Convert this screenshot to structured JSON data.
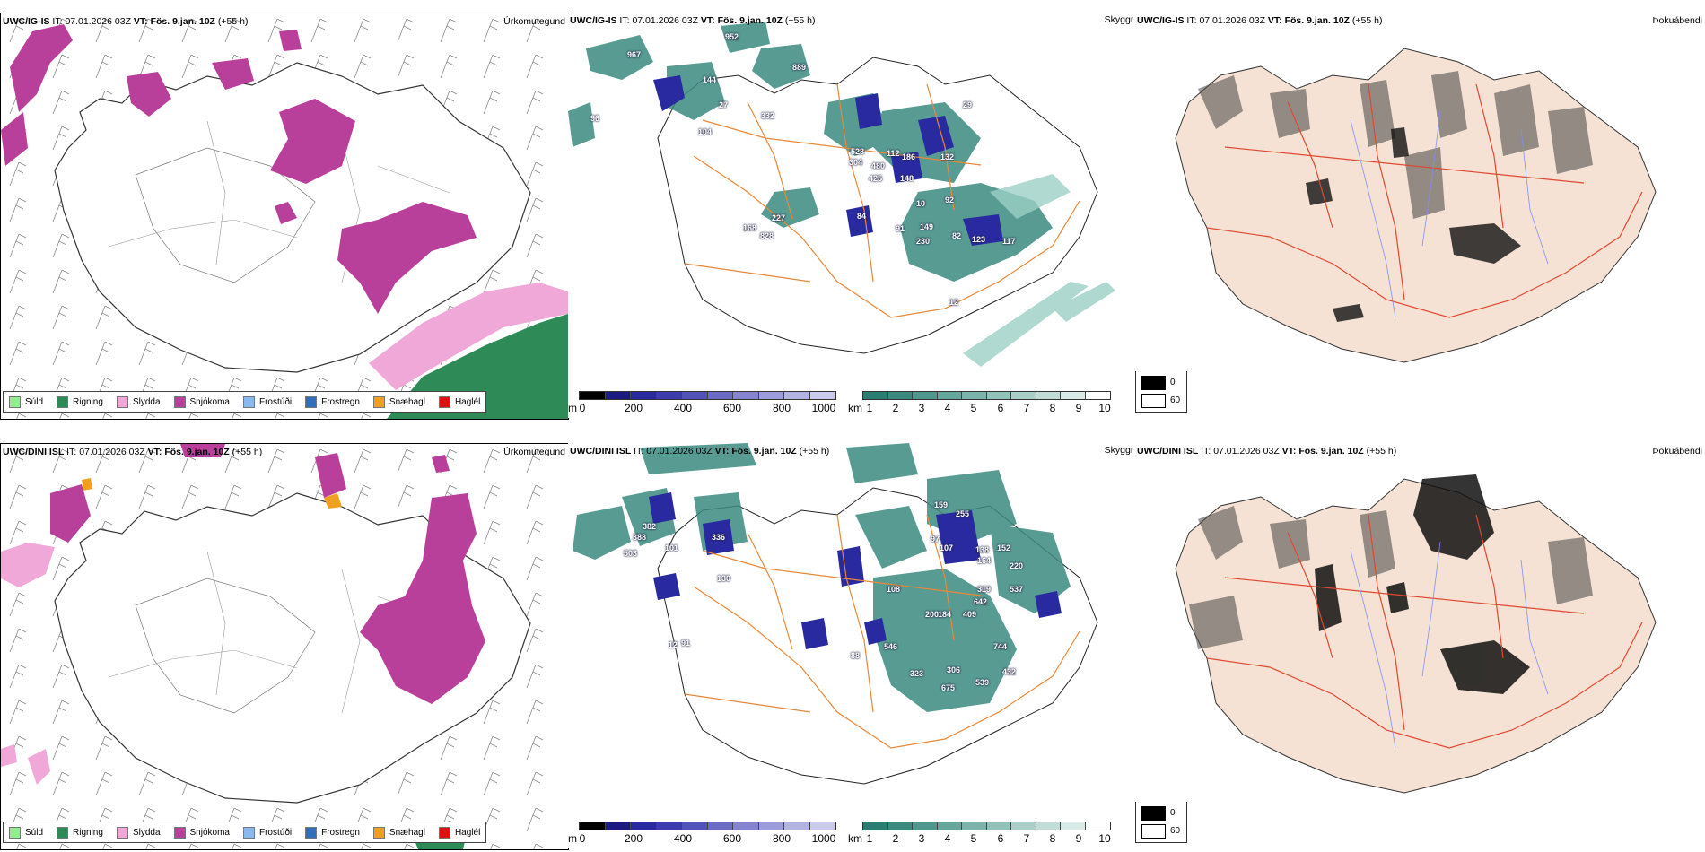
{
  "rows": [
    {
      "model": "UWC/IG-IS",
      "it_label": "IT:",
      "it_value": "07.01.2026 03Z",
      "vt_label": "VT:",
      "vt_value": "Fös. 9.jan. 10Z",
      "lead": "(+55 h)",
      "labels": [
        "967",
        "952",
        "889",
        "144",
        "27",
        "96",
        "104",
        "332",
        "29",
        "528",
        "304",
        "480",
        "186",
        "132",
        "425",
        "112",
        "148",
        "92",
        "10",
        "227",
        "168",
        "828",
        "84",
        "91",
        "149",
        "230",
        "82",
        "123",
        "117",
        "12"
      ]
    },
    {
      "model": "UWC/DINI ISL",
      "it_label": "IT:",
      "it_value": "07.01.2026 03Z",
      "vt_label": "VT:",
      "vt_value": "Fös. 9.jan. 10Z",
      "lead": "(+55 h)",
      "labels": [
        "382",
        "388",
        "503",
        "101",
        "336",
        "130",
        "91",
        "12",
        "159",
        "255",
        "97",
        "107",
        "138",
        "152",
        "164",
        "220",
        "319",
        "537",
        "642",
        "409",
        "184",
        "200",
        "744",
        "546",
        "323",
        "306",
        "432",
        "675",
        "539",
        "88",
        "108"
      ]
    }
  ],
  "panel_titles": {
    "precip_type": "Úrkomutegund",
    "cloud_base": "Skyggni",
    "fog": "Þokuábendi"
  },
  "precip_legend": [
    {
      "label": "Súld",
      "color": "#90ee90"
    },
    {
      "label": "Rigning",
      "color": "#2e8b57"
    },
    {
      "label": "Slydda",
      "color": "#f0a8d8"
    },
    {
      "label": "Snjókoma",
      "color": "#b8409a"
    },
    {
      "label": "Frostúði",
      "color": "#87b8f0"
    },
    {
      "label": "Frostregn",
      "color": "#2f6fc0"
    },
    {
      "label": "Snæhagl",
      "color": "#f0a020"
    },
    {
      "label": "Haglél",
      "color": "#e01010"
    }
  ],
  "cloud_scale": {
    "unit": "m",
    "ticks": [
      "0",
      "200",
      "400",
      "600",
      "800",
      "1000"
    ],
    "colors": [
      "#000000",
      "#1a1a80",
      "#2a2aa0",
      "#3c3cb0",
      "#5252bb",
      "#6b6bc4",
      "#8585cf",
      "#9c9cd8",
      "#b4b4e2",
      "#cacaec"
    ]
  },
  "vis_scale": {
    "unit": "km",
    "ticks": [
      "1",
      "2",
      "3",
      "4",
      "5",
      "6",
      "7",
      "8",
      "9",
      "10"
    ],
    "colors": [
      "#2a7d72",
      "#3a8a80",
      "#4f978e",
      "#65a59c",
      "#7cb3ab",
      "#93c2ba",
      "#aad0c9",
      "#c1ddd8",
      "#d8ebe7",
      "#ffffff"
    ]
  },
  "fog_legend": {
    "high": "0",
    "low": "60",
    "high_color": "#000000",
    "low_color": "#ffffff"
  },
  "colors": {
    "snow": "#b8409a",
    "sleet": "#f0a8d8",
    "rain": "#2e8b57",
    "vis_teal": "#3a8a80",
    "cloud_blue": "#2a2aa0",
    "road_orange": "#e88838",
    "road_red": "#e04830",
    "land_beige": "#f5e2d4",
    "river_blue": "#8090f0"
  }
}
